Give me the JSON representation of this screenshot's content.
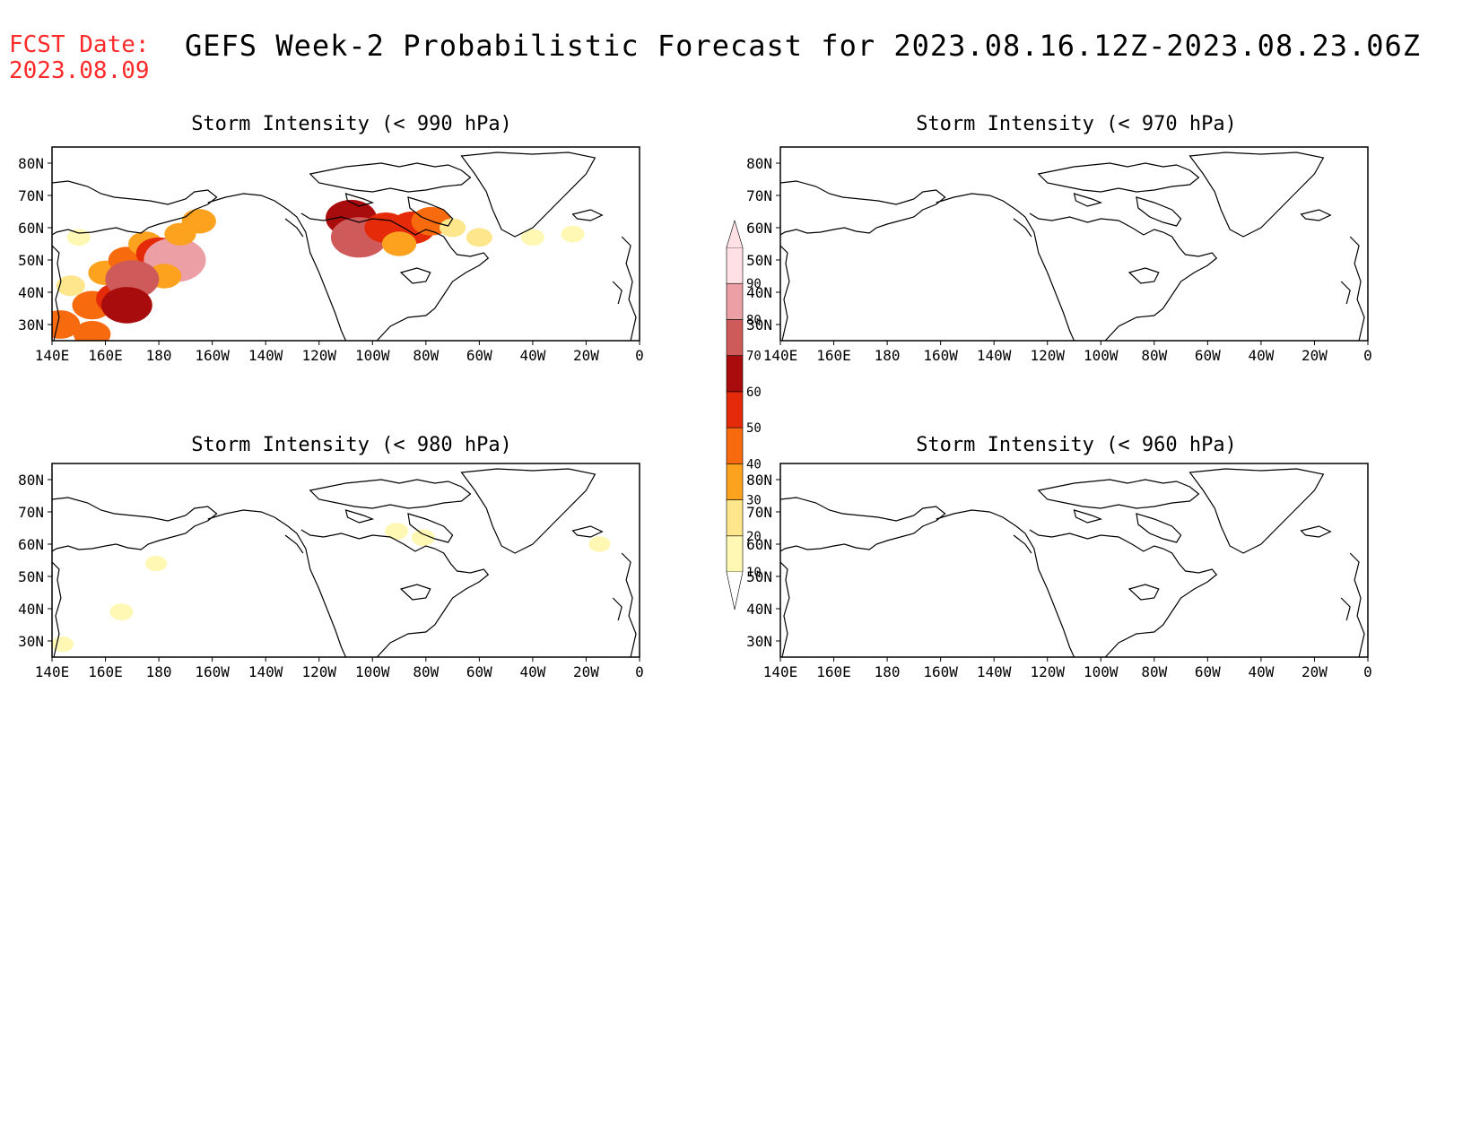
{
  "header": {
    "fcst_label": "FCST Date:",
    "fcst_date": "2023.08.09",
    "title": "GEFS Week-2 Probabilistic Forecast for 2023.08.16.12Z-2023.08.23.06Z"
  },
  "panels": [
    {
      "title": "Storm Intensity (< 990 hPa)"
    },
    {
      "title": "Storm Intensity (< 970 hPa)"
    },
    {
      "title": "Storm Intensity (< 980 hPa)"
    },
    {
      "title": "Storm Intensity (< 960 hPa)"
    }
  ],
  "axes": {
    "lon_labels": [
      "140E",
      "160E",
      "180",
      "160W",
      "140W",
      "120W",
      "100W",
      "80W",
      "60W",
      "40W",
      "20W",
      "0"
    ],
    "lat_labels": [
      "80N",
      "70N",
      "60N",
      "50N",
      "40N",
      "30N"
    ]
  },
  "colorbar": {
    "levels": [
      "10",
      "20",
      "30",
      "40",
      "50",
      "60",
      "70",
      "80",
      "90"
    ],
    "colors": [
      "#fff8b4",
      "#fde68c",
      "#fca21e",
      "#f86a0e",
      "#e42a08",
      "#a80c0c",
      "#cf5a5a",
      "#ec9fa5",
      "#ffe1e5"
    ]
  },
  "chart_data": {
    "type": "heatmap",
    "variable": "probability (%)",
    "lon_range": [
      140,
      360
    ],
    "lat_range": [
      25,
      85
    ],
    "panels": [
      {
        "title": "Storm Intensity (< 990 hPa)",
        "cells": [
          {
            "lon": 143,
            "lat": 30,
            "value": 45
          },
          {
            "lon": 147,
            "lat": 42,
            "value": 25
          },
          {
            "lon": 155,
            "lat": 36,
            "value": 45
          },
          {
            "lon": 160,
            "lat": 46,
            "value": 35
          },
          {
            "lon": 165,
            "lat": 38,
            "value": 55
          },
          {
            "lon": 168,
            "lat": 50,
            "value": 40
          },
          {
            "lon": 175,
            "lat": 55,
            "value": 35
          },
          {
            "lon": 180,
            "lat": 52,
            "value": 55
          },
          {
            "lon": 186,
            "lat": 50,
            "value": 85
          },
          {
            "lon": 182,
            "lat": 45,
            "value": 35
          },
          {
            "lon": 170,
            "lat": 44,
            "value": 70
          },
          {
            "lon": 168,
            "lat": 36,
            "value": 65
          },
          {
            "lon": 188,
            "lat": 58,
            "value": 30
          },
          {
            "lon": 195,
            "lat": 62,
            "value": 35
          },
          {
            "lon": 150,
            "lat": 57,
            "value": 15
          },
          {
            "lon": 155,
            "lat": 27,
            "value": 40
          },
          {
            "lon": 252,
            "lat": 63,
            "value": 65
          },
          {
            "lon": 255,
            "lat": 57,
            "value": 75
          },
          {
            "lon": 265,
            "lat": 60,
            "value": 50
          },
          {
            "lon": 275,
            "lat": 60,
            "value": 55
          },
          {
            "lon": 282,
            "lat": 62,
            "value": 45
          },
          {
            "lon": 270,
            "lat": 55,
            "value": 35
          },
          {
            "lon": 290,
            "lat": 60,
            "value": 20
          },
          {
            "lon": 300,
            "lat": 57,
            "value": 20
          },
          {
            "lon": 320,
            "lat": 57,
            "value": 15
          },
          {
            "lon": 335,
            "lat": 58,
            "value": 15
          }
        ]
      },
      {
        "title": "Storm Intensity (< 970 hPa)",
        "cells": []
      },
      {
        "title": "Storm Intensity (< 980 hPa)",
        "cells": [
          {
            "lon": 166,
            "lat": 39,
            "value": 15
          },
          {
            "lon": 179,
            "lat": 54,
            "value": 12
          },
          {
            "lon": 144,
            "lat": 29,
            "value": 12
          },
          {
            "lon": 269,
            "lat": 64,
            "value": 15
          },
          {
            "lon": 279,
            "lat": 62,
            "value": 15
          },
          {
            "lon": 345,
            "lat": 60,
            "value": 12
          }
        ]
      },
      {
        "title": "Storm Intensity (< 960 hPa)",
        "cells": []
      }
    ]
  }
}
